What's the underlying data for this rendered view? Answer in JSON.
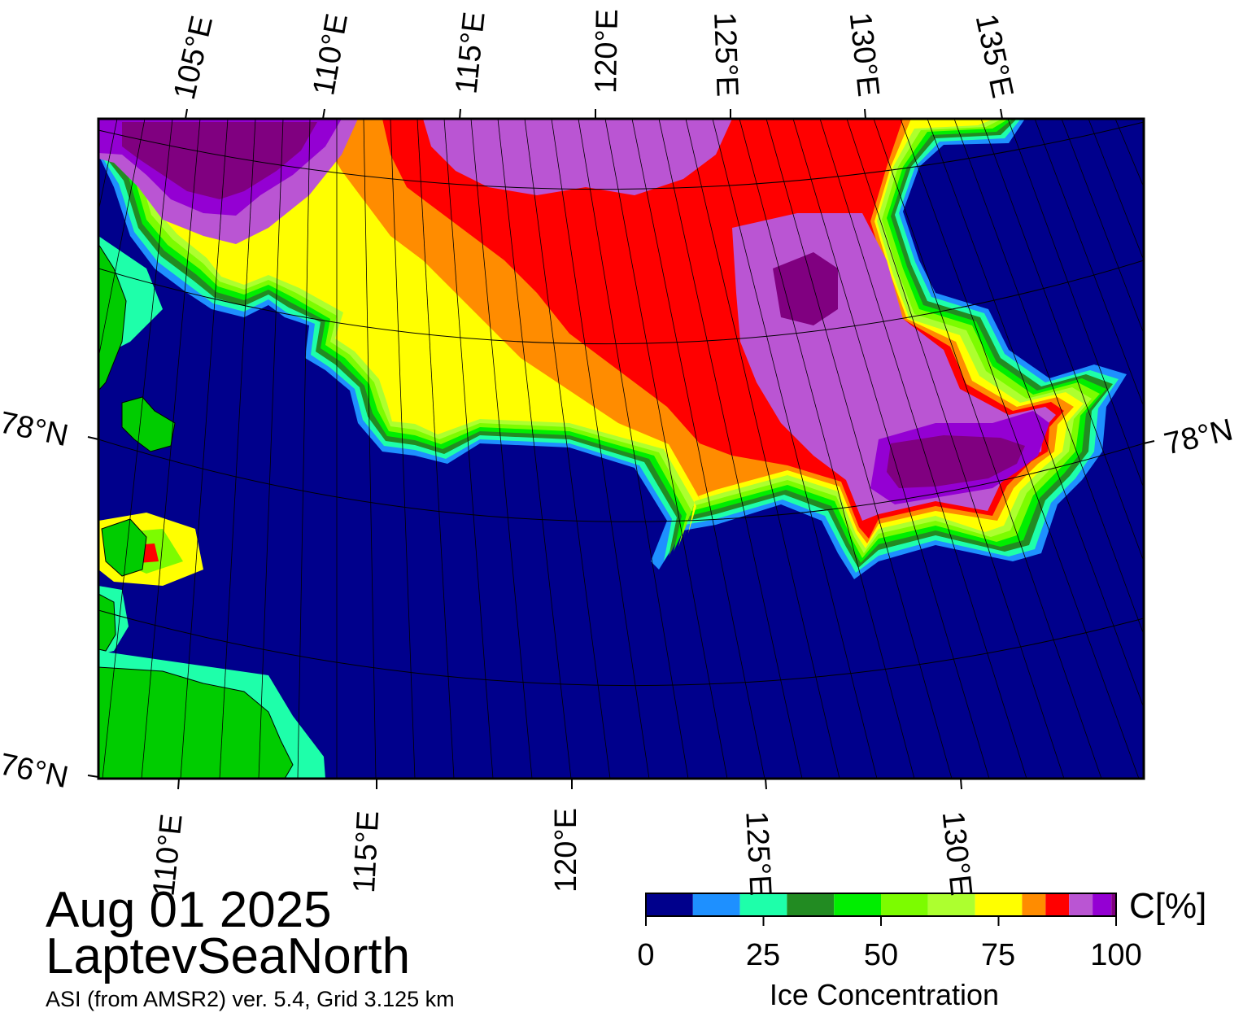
{
  "map": {
    "date": "Aug 01 2025",
    "region": "LaptevSeaNorth",
    "source_note": "ASI (from AMSR2) ver. 5.4,  Grid 3.125 km",
    "top_longitude_labels": [
      "105°E",
      "110°E",
      "115°E",
      "120°E",
      "125°E",
      "130°E",
      "135°E"
    ],
    "bottom_longitude_labels": [
      "110°E",
      "115°E",
      "120°E",
      "125°E",
      "130°E"
    ],
    "latitude_labels": {
      "left": [
        "78°N",
        "76°N"
      ],
      "right": [
        "78°N"
      ]
    },
    "colors": {
      "ocean": "#00008c",
      "land": "#00cc00",
      "land_shadow": "#808080"
    }
  },
  "colorbar": {
    "title": "Ice Concentration",
    "unit_label": "C[%]",
    "tick_labels": [
      "0",
      "25",
      "50",
      "75",
      "100"
    ],
    "ticks": [
      0,
      25,
      50,
      75,
      100
    ],
    "range": [
      0,
      100
    ],
    "bins": [
      {
        "from": 0,
        "to": 10,
        "color": "#00008c"
      },
      {
        "from": 10,
        "to": 20,
        "color": "#1e90ff"
      },
      {
        "from": 20,
        "to": 30,
        "color": "#1effaa"
      },
      {
        "from": 30,
        "to": 40,
        "color": "#228b22"
      },
      {
        "from": 40,
        "to": 50,
        "color": "#00ee00"
      },
      {
        "from": 50,
        "to": 60,
        "color": "#7cfc00"
      },
      {
        "from": 60,
        "to": 70,
        "color": "#adff2f"
      },
      {
        "from": 70,
        "to": 80,
        "color": "#ffff00"
      },
      {
        "from": 80,
        "to": 85,
        "color": "#ff8c00"
      },
      {
        "from": 85,
        "to": 90,
        "color": "#ff0000"
      },
      {
        "from": 90,
        "to": 95,
        "color": "#ba55d3"
      },
      {
        "from": 95,
        "to": 99,
        "color": "#9400d3"
      },
      {
        "from": 99,
        "to": 100,
        "color": "#800080"
      }
    ]
  }
}
